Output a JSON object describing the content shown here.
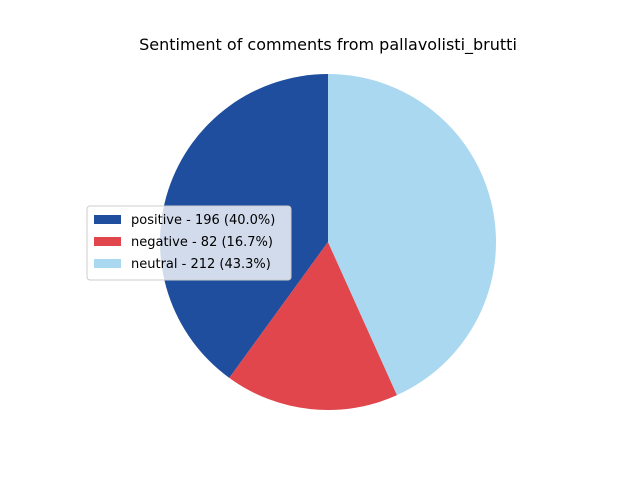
{
  "chart_data": {
    "type": "pie",
    "title": "Sentiment of comments from pallavolisti_brutti",
    "slices": [
      {
        "label": "positive",
        "value": 196,
        "percent": 40.0,
        "color": "#1f4e9e",
        "legend_text": "positive - 196 (40.0%)"
      },
      {
        "label": "negative",
        "value": 82,
        "percent": 16.7,
        "color": "#e0464b",
        "legend_text": "negative - 82 (16.7%)"
      },
      {
        "label": "neutral",
        "value": 212,
        "percent": 43.3,
        "color": "#aad8f0",
        "legend_text": "neutral - 212 (43.3%)"
      }
    ],
    "start_angle_deg": 90,
    "direction": "counterclockwise",
    "legend_position": "center-left"
  }
}
